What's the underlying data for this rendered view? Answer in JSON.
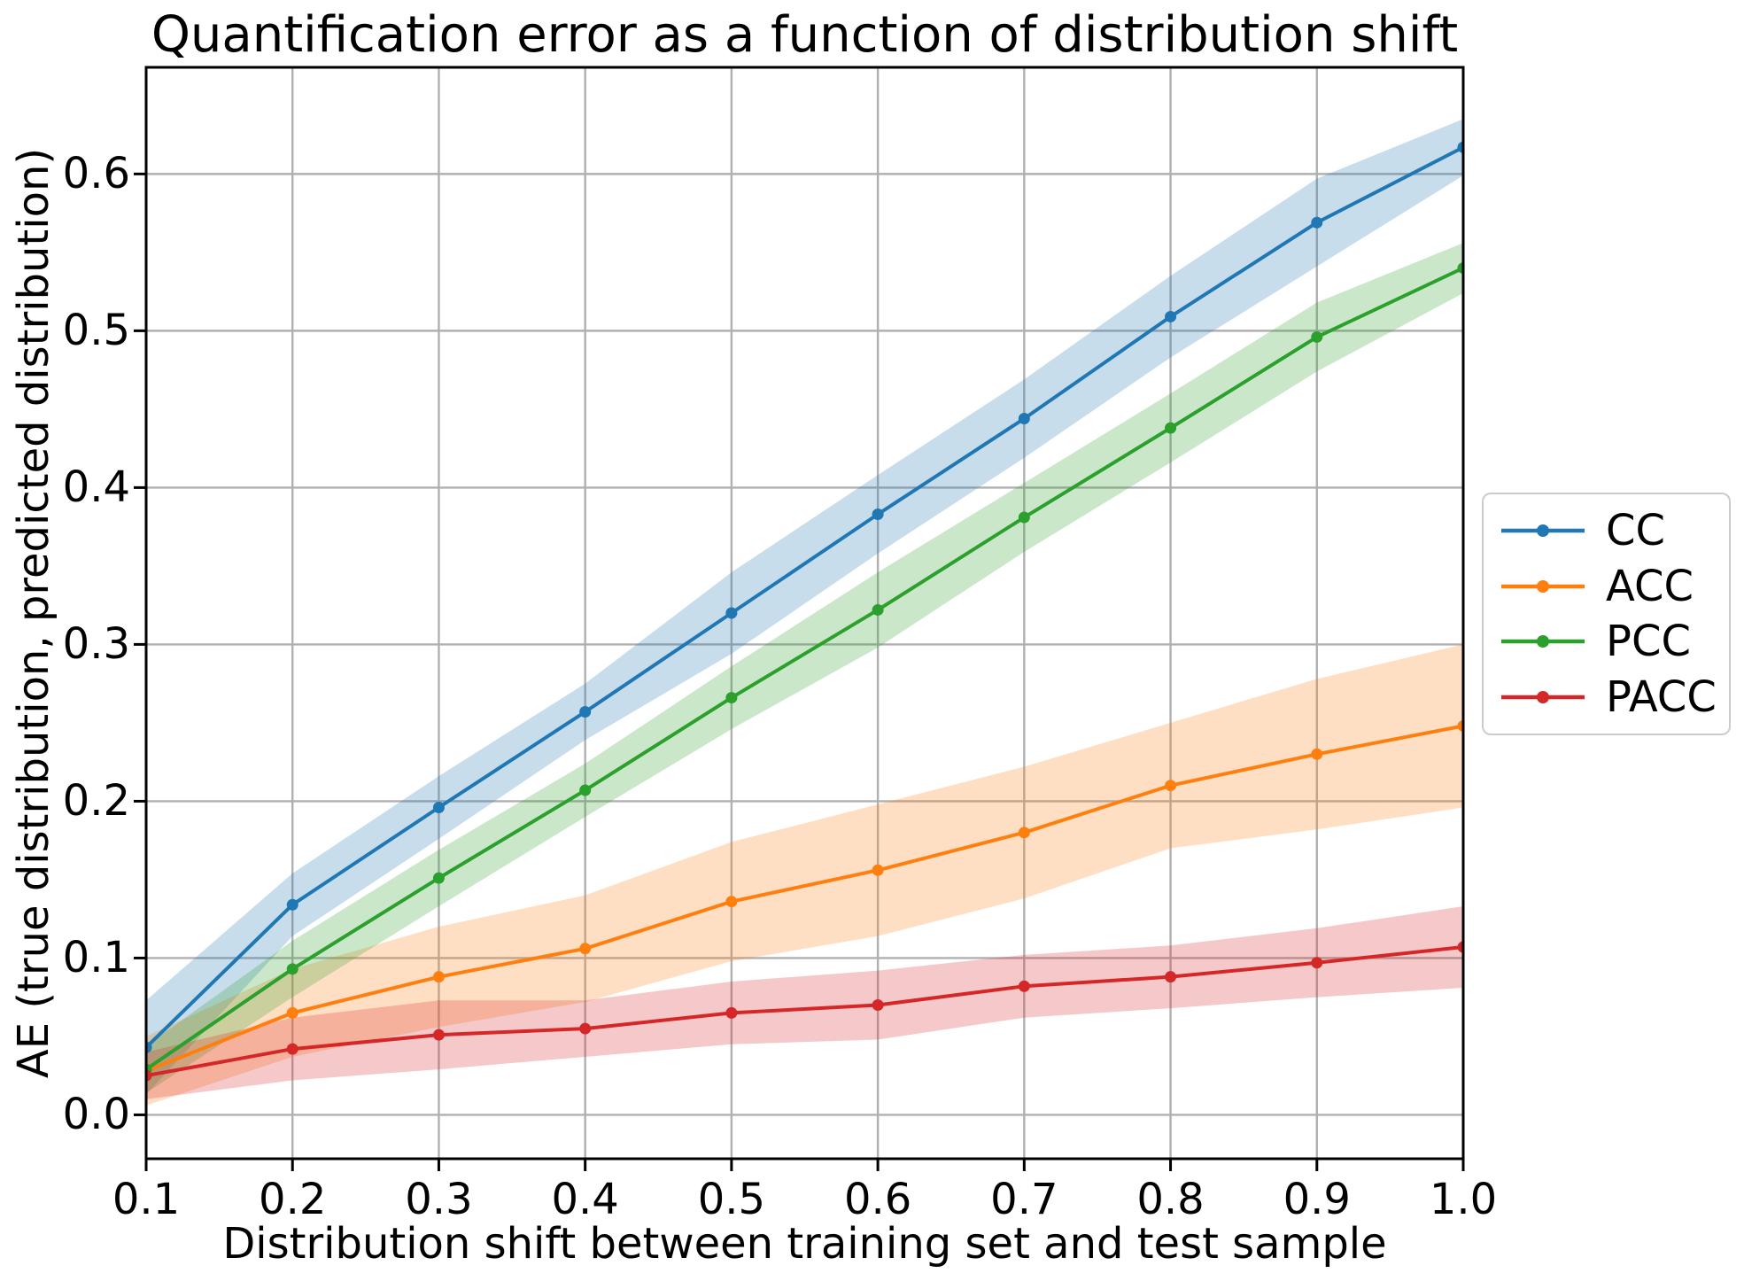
{
  "chart_data": {
    "type": "line",
    "title": "Quantification error as a function of distribution shift",
    "xlabel": "Distribution shift between training set and test sample",
    "ylabel": "AE (true distribution, predicted distribution)",
    "x": [
      0.1,
      0.2,
      0.3,
      0.4,
      0.5,
      0.6,
      0.7,
      0.8,
      0.9,
      1.0
    ],
    "series": [
      {
        "name": "CC",
        "color": "#1f77b4",
        "values": [
          0.043,
          0.134,
          0.196,
          0.257,
          0.32,
          0.383,
          0.444,
          0.509,
          0.569,
          0.617
        ],
        "band_halfwidth": [
          0.03,
          0.02,
          0.02,
          0.018,
          0.026,
          0.025,
          0.025,
          0.026,
          0.028,
          0.018
        ]
      },
      {
        "name": "ACC",
        "color": "#ff7f0e",
        "values": [
          0.028,
          0.065,
          0.088,
          0.106,
          0.136,
          0.156,
          0.18,
          0.21,
          0.23,
          0.248
        ],
        "band_halfwidth": [
          0.022,
          0.028,
          0.032,
          0.034,
          0.038,
          0.042,
          0.042,
          0.04,
          0.048,
          0.052
        ]
      },
      {
        "name": "PCC",
        "color": "#2ca02c",
        "values": [
          0.029,
          0.093,
          0.151,
          0.207,
          0.266,
          0.322,
          0.381,
          0.438,
          0.496,
          0.54
        ],
        "band_halfwidth": [
          0.015,
          0.018,
          0.018,
          0.017,
          0.02,
          0.024,
          0.022,
          0.022,
          0.022,
          0.016
        ]
      },
      {
        "name": "PACC",
        "color": "#d62728",
        "values": [
          0.025,
          0.042,
          0.051,
          0.055,
          0.065,
          0.07,
          0.082,
          0.088,
          0.097,
          0.107
        ],
        "band_halfwidth": [
          0.015,
          0.02,
          0.022,
          0.018,
          0.02,
          0.022,
          0.02,
          0.02,
          0.022,
          0.026
        ]
      }
    ],
    "xticks": [
      "0.1",
      "0.2",
      "0.3",
      "0.4",
      "0.5",
      "0.6",
      "0.7",
      "0.8",
      "0.9",
      "1.0"
    ],
    "yticks": [
      "0.0",
      "0.1",
      "0.2",
      "0.3",
      "0.4",
      "0.5",
      "0.6"
    ],
    "xlim": [
      0.1,
      1.0
    ],
    "ylim": [
      -0.028,
      0.668
    ],
    "grid": true,
    "band_alpha": 0.25,
    "legend_position": "outside-center-right",
    "grid_color": "#b0b0b0",
    "spine_color": "#000000",
    "legend_border_color": "#cccccc"
  }
}
